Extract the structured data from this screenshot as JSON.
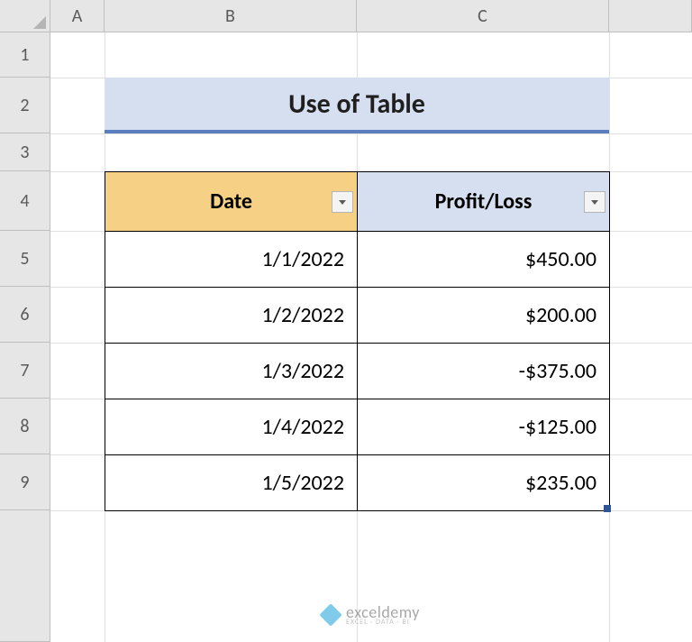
{
  "grid": {
    "col_widths": {
      "A": 60,
      "B": 280,
      "C": 280
    },
    "row_heights": {
      "1": 50,
      "2": 62,
      "3": 42,
      "4": 66,
      "5": 62,
      "6": 62,
      "7": 62,
      "8": 62,
      "9": 62
    },
    "header_bg": "#e6e6e6",
    "header_border": "#bfbfbf",
    "header_text_color": "#5a5a5a",
    "gridline_color": "#e0e0e0",
    "columns": [
      "A",
      "B",
      "C"
    ],
    "rows": [
      "1",
      "2",
      "3",
      "4",
      "5",
      "6",
      "7",
      "8",
      "9"
    ]
  },
  "title_cell": {
    "text": "Use of Table",
    "bg": "#d6dff0",
    "underline_color": "#5b7fbe",
    "font_size": 30,
    "left_col": "B",
    "right_col": "C",
    "row": "2"
  },
  "table": {
    "start_col": "B",
    "start_row": "4",
    "header_bg_col1": "#f6d185",
    "header_bg_col2": "#d6dff0",
    "border_color": "#000000",
    "columns": [
      {
        "label": "Date",
        "filter": true
      },
      {
        "label": "Profit/Loss",
        "filter": true
      }
    ],
    "rows": [
      {
        "date": "1/1/2022",
        "value": "$450.00"
      },
      {
        "date": "1/2/2022",
        "value": "$200.00"
      },
      {
        "date": "1/3/2022",
        "value": "-$375.00"
      },
      {
        "date": "1/4/2022",
        "value": "-$125.00"
      },
      {
        "date": "1/5/2022",
        "value": "$235.00"
      }
    ],
    "filter_btn_bg": "#f4f4f4",
    "filter_btn_border": "#b5b5b5",
    "handle_color": "#2f5597"
  },
  "watermark": {
    "text": "exceldemy",
    "sub": "EXCEL · DATA · BI",
    "icon_color": "#3fb0e0"
  }
}
